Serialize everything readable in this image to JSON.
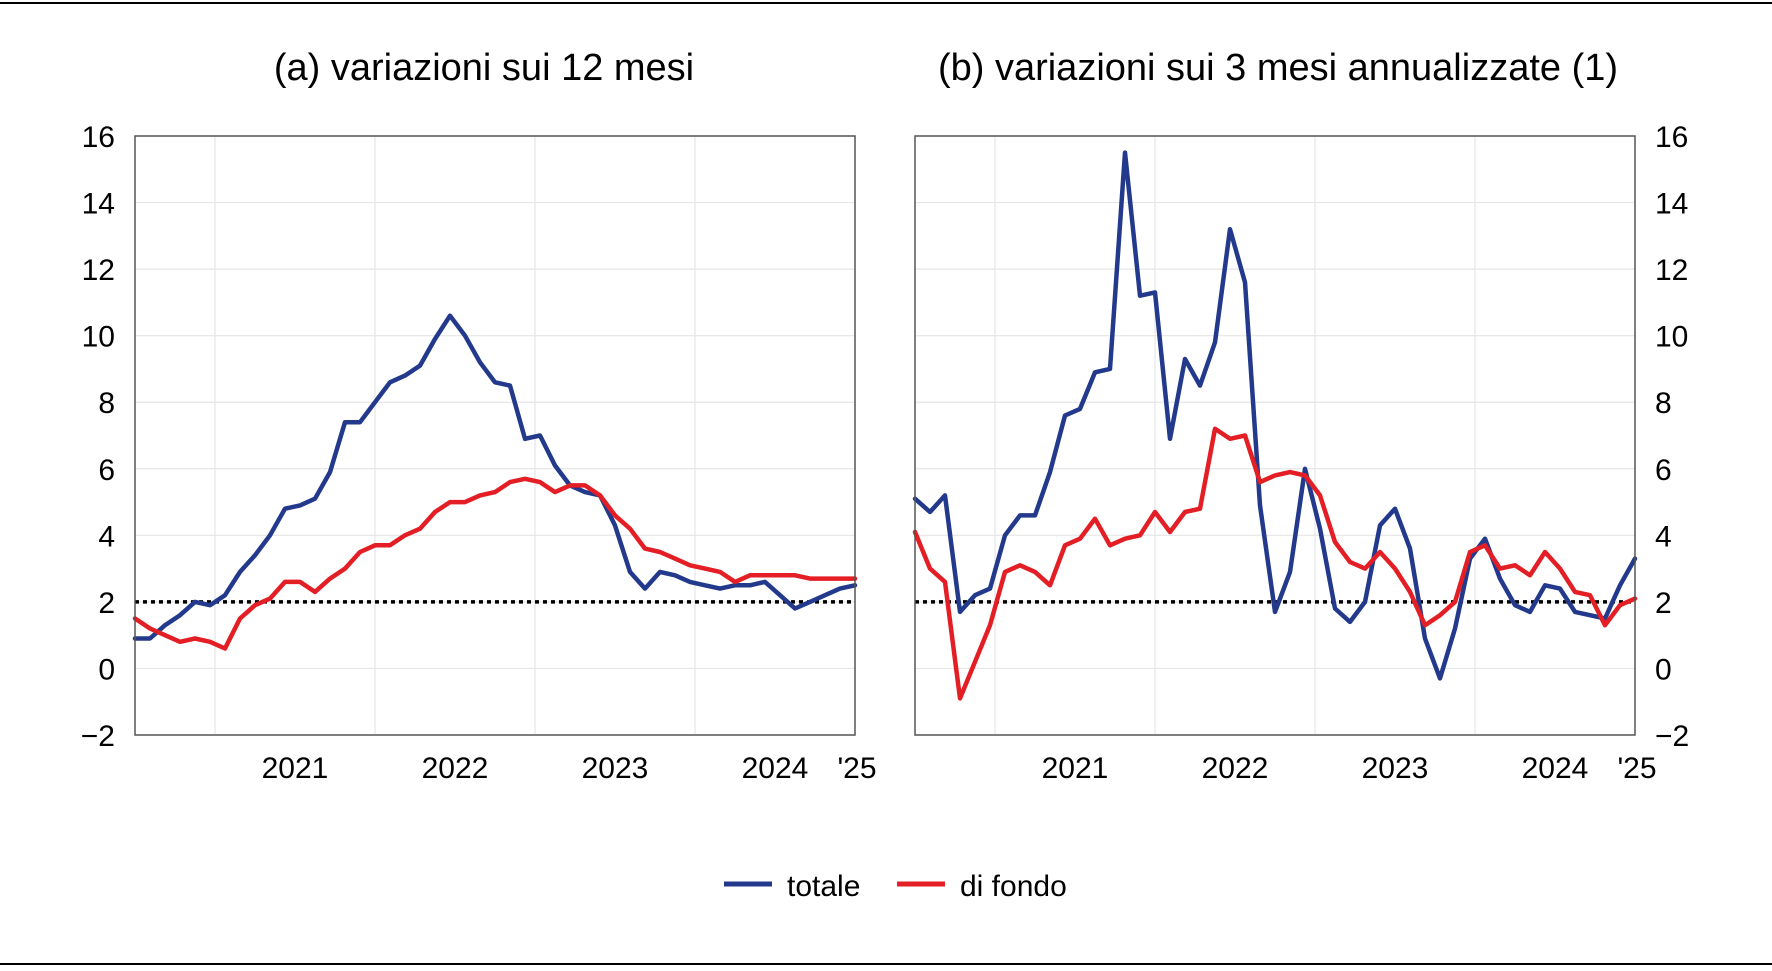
{
  "chart_data": [
    {
      "type": "line",
      "title": "(a) variazioni sui 12 mesi",
      "x_start": "2020-07",
      "x_end": "2025-01",
      "x_tick_labels": [
        "2021",
        "2022",
        "2023",
        "2024",
        "'25"
      ],
      "ylim": [
        -2,
        16
      ],
      "y_ticks": [
        "−2",
        "0",
        "2",
        "4",
        "6",
        "8",
        "10",
        "12",
        "14",
        "16"
      ],
      "y_axis_side": "left",
      "grid": true,
      "reference_line": 2,
      "series": [
        {
          "name": "totale",
          "values": [
            0.9,
            0.9,
            1.3,
            1.6,
            2.0,
            1.9,
            2.2,
            2.9,
            3.4,
            4.0,
            4.8,
            4.9,
            5.1,
            5.9,
            7.4,
            7.4,
            8.0,
            8.6,
            8.8,
            9.1,
            9.9,
            10.6,
            10.0,
            9.2,
            8.6,
            8.5,
            6.9,
            7.0,
            6.1,
            5.5,
            5.3,
            5.2,
            4.3,
            2.9,
            2.4,
            2.9,
            2.8,
            2.6,
            2.5,
            2.4,
            2.5,
            2.5,
            2.6,
            2.2,
            1.8,
            2.0,
            2.2,
            2.4,
            2.5
          ]
        },
        {
          "name": "di fondo",
          "values": [
            1.5,
            1.2,
            1.0,
            0.8,
            0.9,
            0.8,
            0.6,
            1.5,
            1.9,
            2.1,
            2.6,
            2.6,
            2.3,
            2.7,
            3.0,
            3.5,
            3.7,
            3.7,
            4.0,
            4.2,
            4.7,
            5.0,
            5.0,
            5.2,
            5.3,
            5.6,
            5.7,
            5.6,
            5.3,
            5.5,
            5.5,
            5.2,
            4.6,
            4.2,
            3.6,
            3.5,
            3.3,
            3.1,
            3.0,
            2.9,
            2.6,
            2.8,
            2.8,
            2.8,
            2.8,
            2.7,
            2.7,
            2.7,
            2.7
          ]
        }
      ]
    },
    {
      "type": "line",
      "title": "(b) variazioni sui 3 mesi annualizzate (1)",
      "x_start": "2020-07",
      "x_end": "2025-01",
      "x_tick_labels": [
        "2021",
        "2022",
        "2023",
        "2024",
        "'25"
      ],
      "ylim": [
        -2,
        16
      ],
      "y_ticks": [
        "−2",
        "0",
        "2",
        "4",
        "6",
        "8",
        "10",
        "12",
        "14",
        "16"
      ],
      "y_axis_side": "right",
      "grid": true,
      "reference_line": 2,
      "series": [
        {
          "name": "totale",
          "values": [
            5.1,
            4.7,
            5.2,
            1.7,
            2.2,
            2.4,
            4.0,
            4.6,
            4.6,
            5.9,
            7.6,
            7.8,
            8.9,
            9.0,
            15.5,
            11.2,
            11.3,
            6.9,
            9.3,
            8.5,
            9.8,
            13.2,
            11.6,
            4.9,
            1.7,
            2.9,
            6.0,
            4.2,
            1.8,
            1.4,
            2.0,
            4.3,
            4.8,
            3.6,
            0.9,
            -0.3,
            1.2,
            3.3,
            3.9,
            2.7,
            1.9,
            1.7,
            2.5,
            2.4,
            1.7,
            1.6,
            1.5,
            2.5,
            3.3
          ]
        },
        {
          "name": "di fondo",
          "values": [
            4.1,
            3.0,
            2.6,
            -0.9,
            0.2,
            1.3,
            2.9,
            3.1,
            2.9,
            2.5,
            3.7,
            3.9,
            4.5,
            3.7,
            3.9,
            4.0,
            4.7,
            4.1,
            4.7,
            4.8,
            7.2,
            6.9,
            7.0,
            5.6,
            5.8,
            5.9,
            5.8,
            5.2,
            3.8,
            3.2,
            3.0,
            3.5,
            3.0,
            2.3,
            1.3,
            1.6,
            2.0,
            3.5,
            3.7,
            3.0,
            3.1,
            2.8,
            3.5,
            3.0,
            2.3,
            2.2,
            1.3,
            1.9,
            2.1
          ]
        }
      ]
    }
  ],
  "legend": {
    "placement": "bottom-center",
    "items": [
      {
        "label": "totale",
        "color": "#233a8c"
      },
      {
        "label": "di fondo",
        "color": "#e31e24"
      }
    ]
  },
  "colors": {
    "totale": "#233a8c",
    "di_fondo": "#e31e24",
    "grid": "#e6e6e6",
    "reference": "#000000"
  }
}
